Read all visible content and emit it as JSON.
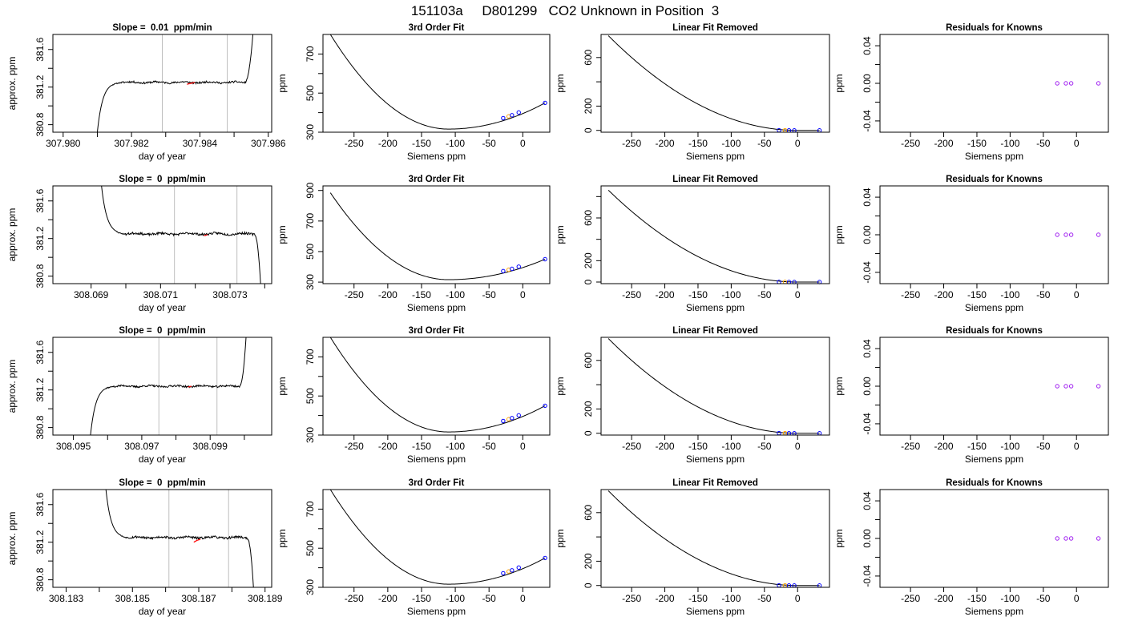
{
  "figure_title": "151103a     D801299   CO2 Unknown in Position  3",
  "colors": {
    "line": "#000000",
    "gray_line": "#bebebe",
    "red": "#ff0000",
    "blue": "#0000ff",
    "orange": "#ffa500",
    "purple": "#a020f0"
  },
  "chart_data": [
    {
      "type": "line",
      "title": "Slope =  0.01  ppm/min",
      "xlabel": "day of year",
      "ylabel": "approx. ppm",
      "xlim": [
        307.9797,
        307.9861
      ],
      "ylim": [
        380.72,
        381.76
      ],
      "xticks": [
        307.98,
        307.981,
        307.982,
        307.983,
        307.984,
        307.985,
        307.986
      ],
      "xticklabels": [
        "307.980",
        "",
        "307.982",
        "",
        "307.984",
        "",
        "307.986"
      ],
      "yticks": [
        380.8,
        381.0,
        381.2,
        381.4,
        381.6
      ],
      "yticklabels": [
        "380.8",
        "",
        "381.2",
        "",
        "381.6"
      ],
      "vlines": [
        307.9829,
        307.9848
      ],
      "trace": {
        "x0": 307.981,
        "x1": 307.98555,
        "start": 380.72,
        "plateau": 381.25,
        "end": 381.76,
        "rise_end": 307.9817,
        "fall_start": 307.9853,
        "direction": "up",
        "noise": 0.01,
        "seed": 11
      },
      "highlight": {
        "x": [
          307.98362,
          307.98374,
          307.98385
        ],
        "y": [
          381.23,
          381.24,
          381.25
        ]
      }
    },
    {
      "type": "line",
      "title": "3rd Order Fit",
      "xlabel": "Siemens ppm",
      "ylabel": "ppm",
      "xlim": [
        -296,
        40
      ],
      "ylim": [
        300,
        800
      ],
      "xticks": [
        -250,
        -200,
        -150,
        -100,
        -50,
        0
      ],
      "xticklabels": [
        "-250",
        "-200",
        "-150",
        "-100",
        "-50",
        "0"
      ],
      "yticks": [
        300,
        400,
        500,
        600,
        700
      ],
      "yticklabels": [
        "300",
        "",
        "500",
        "",
        "700"
      ],
      "curve": {
        "xmin": -285,
        "xmax": 33,
        "xv": -110,
        "yv": 316,
        "y_left": 800,
        "y_right": 450
      },
      "points": [
        {
          "x": -29,
          "y": 372,
          "color": "blue"
        },
        {
          "x": -21,
          "y": 381,
          "color": "orange"
        },
        {
          "x": -16,
          "y": 387,
          "color": "blue"
        },
        {
          "x": -6,
          "y": 401,
          "color": "blue"
        },
        {
          "x": 33,
          "y": 450,
          "color": "blue"
        }
      ]
    },
    {
      "type": "line",
      "title": "Linear Fit Removed",
      "xlabel": "Siemens ppm",
      "ylabel": "ppm",
      "xlim": [
        -296,
        48
      ],
      "ylim": [
        -15,
        790
      ],
      "xticks": [
        -250,
        -200,
        -150,
        -100,
        -50,
        0
      ],
      "xticklabels": [
        "-250",
        "-200",
        "-150",
        "-100",
        "-50",
        "0"
      ],
      "yticks": [
        0,
        200,
        400,
        600
      ],
      "yticklabels": [
        "0",
        "200",
        "",
        "600"
      ],
      "curve": {
        "xmin": -285,
        "xmax": 33,
        "xv": 0,
        "yv": 0,
        "y_left": 780,
        "y_right": 0
      },
      "points": [
        {
          "x": -28,
          "y": 1,
          "color": "blue"
        },
        {
          "x": -19,
          "y": 1,
          "color": "orange"
        },
        {
          "x": -13,
          "y": 0,
          "color": "blue"
        },
        {
          "x": -5,
          "y": 0,
          "color": "blue"
        },
        {
          "x": 33,
          "y": 0,
          "color": "blue"
        }
      ]
    },
    {
      "type": "scatter",
      "title": "Residuals for Knowns",
      "xlabel": "Siemens ppm",
      "ylabel": "ppm",
      "xlim": [
        -296,
        48
      ],
      "ylim": [
        -0.052,
        0.052
      ],
      "xticks": [
        -250,
        -200,
        -150,
        -100,
        -50,
        0
      ],
      "xticklabels": [
        "-250",
        "-200",
        "-150",
        "-100",
        "-50",
        "0"
      ],
      "yticks": [
        -0.04,
        -0.02,
        0,
        0.02,
        0.04
      ],
      "yticklabels": [
        "-0.04",
        "",
        "0.00",
        "",
        "0.04"
      ],
      "points": [
        {
          "x": -29,
          "y": 0,
          "color": "purple"
        },
        {
          "x": -16,
          "y": 0,
          "color": "purple"
        },
        {
          "x": -8,
          "y": 0,
          "color": "purple"
        },
        {
          "x": 33,
          "y": 0,
          "color": "purple"
        }
      ]
    },
    {
      "type": "line",
      "title": "Slope =  0  ppm/min",
      "xlabel": "day of year",
      "ylabel": "approx. ppm",
      "xlim": [
        308.0679,
        308.0742
      ],
      "ylim": [
        380.72,
        381.76
      ],
      "xticks": [
        308.069,
        308.07,
        308.071,
        308.072,
        308.073,
        308.074
      ],
      "xticklabels": [
        "308.069",
        "",
        "308.071",
        "",
        "308.073",
        ""
      ],
      "yticks": [
        380.8,
        381.0,
        381.2,
        381.4,
        381.6
      ],
      "yticklabels": [
        "380.8",
        "",
        "381.2",
        "",
        "381.6"
      ],
      "vlines": [
        308.0714,
        308.0732
      ],
      "trace": {
        "x0": 308.0693,
        "x1": 308.07388,
        "start": 381.76,
        "plateau": 381.25,
        "end": 380.72,
        "rise_end": 308.07,
        "fall_start": 308.0737,
        "direction": "down",
        "noise": 0.012,
        "seed": 23
      },
      "highlight": {
        "x": [
          308.07225,
          308.07235
        ],
        "y": [
          381.23,
          381.24
        ]
      }
    },
    {
      "type": "line",
      "title": "3rd Order Fit",
      "xlabel": "Siemens ppm",
      "ylabel": "ppm",
      "xlim": [
        -296,
        40
      ],
      "ylim": [
        290,
        930
      ],
      "xticks": [
        -250,
        -200,
        -150,
        -100,
        -50,
        0
      ],
      "xticklabels": [
        "-250",
        "-200",
        "-150",
        "-100",
        "-50",
        "0"
      ],
      "yticks": [
        300,
        500,
        700,
        900
      ],
      "yticklabels": [
        "300",
        "500",
        "700",
        "900"
      ],
      "curve": {
        "xmin": -285,
        "xmax": 33,
        "xv": -110,
        "yv": 316,
        "y_left": 885,
        "y_right": 450
      },
      "points": [
        {
          "x": -29,
          "y": 372,
          "color": "blue"
        },
        {
          "x": -21,
          "y": 381,
          "color": "orange"
        },
        {
          "x": -16,
          "y": 387,
          "color": "blue"
        },
        {
          "x": -6,
          "y": 401,
          "color": "blue"
        },
        {
          "x": 33,
          "y": 450,
          "color": "blue"
        }
      ]
    },
    {
      "type": "line",
      "title": "Linear Fit Removed",
      "xlabel": "Siemens ppm",
      "ylabel": "ppm",
      "xlim": [
        -296,
        48
      ],
      "ylim": [
        -15,
        900
      ],
      "xticks": [
        -250,
        -200,
        -150,
        -100,
        -50,
        0
      ],
      "xticklabels": [
        "-250",
        "-200",
        "-150",
        "-100",
        "-50",
        "0"
      ],
      "yticks": [
        0,
        200,
        400,
        600,
        800
      ],
      "yticklabels": [
        "0",
        "200",
        "",
        "600",
        ""
      ],
      "curve": {
        "xmin": -285,
        "xmax": 33,
        "xv": 0,
        "yv": 0,
        "y_left": 860,
        "y_right": 0
      },
      "points": [
        {
          "x": -28,
          "y": 1,
          "color": "blue"
        },
        {
          "x": -19,
          "y": 1,
          "color": "orange"
        },
        {
          "x": -13,
          "y": 0,
          "color": "blue"
        },
        {
          "x": -5,
          "y": 0,
          "color": "blue"
        },
        {
          "x": 33,
          "y": 0,
          "color": "blue"
        }
      ]
    },
    {
      "type": "scatter",
      "title": "Residuals for Knowns",
      "xlabel": "Siemens ppm",
      "ylabel": "ppm",
      "xlim": [
        -296,
        48
      ],
      "ylim": [
        -0.052,
        0.052
      ],
      "xticks": [
        -250,
        -200,
        -150,
        -100,
        -50,
        0
      ],
      "xticklabels": [
        "-250",
        "-200",
        "-150",
        "-100",
        "-50",
        "0"
      ],
      "yticks": [
        -0.04,
        -0.02,
        0,
        0.02,
        0.04
      ],
      "yticklabels": [
        "-0.04",
        "",
        "0.00",
        "",
        "0.04"
      ],
      "points": [
        {
          "x": -29,
          "y": 0,
          "color": "purple"
        },
        {
          "x": -16,
          "y": 0,
          "color": "purple"
        },
        {
          "x": -8,
          "y": 0,
          "color": "purple"
        },
        {
          "x": 33,
          "y": 0,
          "color": "purple"
        }
      ]
    },
    {
      "type": "line",
      "title": "Slope =  0  ppm/min",
      "xlabel": "day of year",
      "ylabel": "approx. ppm",
      "xlim": [
        308.0944,
        308.1008
      ],
      "ylim": [
        380.72,
        381.76
      ],
      "xticks": [
        308.095,
        308.096,
        308.097,
        308.098,
        308.099,
        308.1
      ],
      "xticklabels": [
        "308.095",
        "",
        "308.097",
        "",
        "308.099",
        ""
      ],
      "yticks": [
        380.8,
        381.0,
        381.2,
        381.4,
        381.6
      ],
      "yticklabels": [
        "380.8",
        "",
        "381.2",
        "",
        "381.6"
      ],
      "vlines": [
        308.0975,
        308.0992
      ],
      "trace": {
        "x0": 308.0955,
        "x1": 308.10005,
        "start": 380.72,
        "plateau": 381.24,
        "end": 381.76,
        "rise_end": 308.0962,
        "fall_start": 308.09985,
        "direction": "up",
        "noise": 0.01,
        "seed": 37
      },
      "highlight": {
        "x": [
          308.09835,
          308.09845
        ],
        "y": [
          381.23,
          381.24
        ]
      }
    },
    {
      "type": "line",
      "title": "3rd Order Fit",
      "xlabel": "Siemens ppm",
      "ylabel": "ppm",
      "xlim": [
        -296,
        40
      ],
      "ylim": [
        300,
        800
      ],
      "xticks": [
        -250,
        -200,
        -150,
        -100,
        -50,
        0
      ],
      "xticklabels": [
        "-250",
        "-200",
        "-150",
        "-100",
        "-50",
        "0"
      ],
      "yticks": [
        300,
        400,
        500,
        600,
        700
      ],
      "yticklabels": [
        "300",
        "",
        "500",
        "",
        "700"
      ],
      "curve": {
        "xmin": -285,
        "xmax": 33,
        "xv": -110,
        "yv": 316,
        "y_left": 800,
        "y_right": 450
      },
      "points": [
        {
          "x": -29,
          "y": 372,
          "color": "blue"
        },
        {
          "x": -21,
          "y": 381,
          "color": "orange"
        },
        {
          "x": -16,
          "y": 387,
          "color": "blue"
        },
        {
          "x": -6,
          "y": 401,
          "color": "blue"
        },
        {
          "x": 33,
          "y": 450,
          "color": "blue"
        }
      ]
    },
    {
      "type": "line",
      "title": "Linear Fit Removed",
      "xlabel": "Siemens ppm",
      "ylabel": "ppm",
      "xlim": [
        -296,
        48
      ],
      "ylim": [
        -15,
        790
      ],
      "xticks": [
        -250,
        -200,
        -150,
        -100,
        -50,
        0
      ],
      "xticklabels": [
        "-250",
        "-200",
        "-150",
        "-100",
        "-50",
        "0"
      ],
      "yticks": [
        0,
        200,
        400,
        600
      ],
      "yticklabels": [
        "0",
        "200",
        "",
        "600"
      ],
      "curve": {
        "xmin": -285,
        "xmax": 33,
        "xv": 0,
        "yv": 0,
        "y_left": 780,
        "y_right": 0
      },
      "points": [
        {
          "x": -28,
          "y": 1,
          "color": "blue"
        },
        {
          "x": -19,
          "y": 1,
          "color": "orange"
        },
        {
          "x": -13,
          "y": 0,
          "color": "blue"
        },
        {
          "x": -5,
          "y": 0,
          "color": "blue"
        },
        {
          "x": 33,
          "y": 0,
          "color": "blue"
        }
      ]
    },
    {
      "type": "scatter",
      "title": "Residuals for Knowns",
      "xlabel": "Siemens ppm",
      "ylabel": "ppm",
      "xlim": [
        -296,
        48
      ],
      "ylim": [
        -0.052,
        0.052
      ],
      "xticks": [
        -250,
        -200,
        -150,
        -100,
        -50,
        0
      ],
      "xticklabels": [
        "-250",
        "-200",
        "-150",
        "-100",
        "-50",
        "0"
      ],
      "yticks": [
        -0.04,
        -0.02,
        0,
        0.02,
        0.04
      ],
      "yticklabels": [
        "-0.04",
        "",
        "0.00",
        "",
        "0.04"
      ],
      "points": [
        {
          "x": -29,
          "y": 0,
          "color": "purple"
        },
        {
          "x": -16,
          "y": 0,
          "color": "purple"
        },
        {
          "x": -8,
          "y": 0,
          "color": "purple"
        },
        {
          "x": 33,
          "y": 0,
          "color": "purple"
        }
      ]
    },
    {
      "type": "line",
      "title": "Slope =  0  ppm/min",
      "xlabel": "day of year",
      "ylabel": "approx. ppm",
      "xlim": [
        308.1826,
        308.1892
      ],
      "ylim": [
        380.72,
        381.76
      ],
      "xticks": [
        308.183,
        308.184,
        308.185,
        308.186,
        308.187,
        308.188,
        308.189
      ],
      "xticklabels": [
        "308.183",
        "",
        "308.185",
        "",
        "308.187",
        "",
        "308.189"
      ],
      "yticks": [
        380.8,
        381.0,
        381.2,
        381.4,
        381.6
      ],
      "yticklabels": [
        "380.8",
        "",
        "381.2",
        "",
        "381.6"
      ],
      "vlines": [
        308.1861,
        308.1879
      ],
      "trace": {
        "x0": 308.1842,
        "x1": 308.18865,
        "start": 381.76,
        "plateau": 381.25,
        "end": 380.72,
        "rise_end": 308.1849,
        "fall_start": 308.18845,
        "direction": "down",
        "noise": 0.012,
        "seed": 53
      },
      "highlight": {
        "x": [
          308.18685,
          308.18695,
          308.18705
        ],
        "y": [
          381.2,
          381.22,
          381.23
        ]
      }
    },
    {
      "type": "line",
      "title": "3rd Order Fit",
      "xlabel": "Siemens ppm",
      "ylabel": "ppm",
      "xlim": [
        -296,
        40
      ],
      "ylim": [
        300,
        800
      ],
      "xticks": [
        -250,
        -200,
        -150,
        -100,
        -50,
        0
      ],
      "xticklabels": [
        "-250",
        "-200",
        "-150",
        "-100",
        "-50",
        "0"
      ],
      "yticks": [
        300,
        400,
        500,
        600,
        700
      ],
      "yticklabels": [
        "300",
        "",
        "500",
        "",
        "700"
      ],
      "curve": {
        "xmin": -285,
        "xmax": 33,
        "xv": -110,
        "yv": 316,
        "y_left": 800,
        "y_right": 450
      },
      "points": [
        {
          "x": -29,
          "y": 372,
          "color": "blue"
        },
        {
          "x": -21,
          "y": 381,
          "color": "orange"
        },
        {
          "x": -16,
          "y": 387,
          "color": "blue"
        },
        {
          "x": -6,
          "y": 401,
          "color": "blue"
        },
        {
          "x": 33,
          "y": 450,
          "color": "blue"
        }
      ]
    },
    {
      "type": "line",
      "title": "Linear Fit Removed",
      "xlabel": "Siemens ppm",
      "ylabel": "ppm",
      "xlim": [
        -296,
        48
      ],
      "ylim": [
        -15,
        790
      ],
      "xticks": [
        -250,
        -200,
        -150,
        -100,
        -50,
        0
      ],
      "xticklabels": [
        "-250",
        "-200",
        "-150",
        "-100",
        "-50",
        "0"
      ],
      "yticks": [
        0,
        200,
        400,
        600
      ],
      "yticklabels": [
        "0",
        "200",
        "",
        "600"
      ],
      "curve": {
        "xmin": -285,
        "xmax": 33,
        "xv": 0,
        "yv": 0,
        "y_left": 780,
        "y_right": 0
      },
      "points": [
        {
          "x": -28,
          "y": 1,
          "color": "blue"
        },
        {
          "x": -19,
          "y": 1,
          "color": "orange"
        },
        {
          "x": -13,
          "y": 0,
          "color": "blue"
        },
        {
          "x": -5,
          "y": 0,
          "color": "blue"
        },
        {
          "x": 33,
          "y": 0,
          "color": "blue"
        }
      ]
    },
    {
      "type": "scatter",
      "title": "Residuals for Knowns",
      "xlabel": "Siemens ppm",
      "ylabel": "ppm",
      "xlim": [
        -296,
        48
      ],
      "ylim": [
        -0.052,
        0.052
      ],
      "xticks": [
        -250,
        -200,
        -150,
        -100,
        -50,
        0
      ],
      "xticklabels": [
        "-250",
        "-200",
        "-150",
        "-100",
        "-50",
        "0"
      ],
      "yticks": [
        -0.04,
        -0.02,
        0,
        0.02,
        0.04
      ],
      "yticklabels": [
        "-0.04",
        "",
        "0.00",
        "",
        "0.04"
      ],
      "points": [
        {
          "x": -29,
          "y": 0,
          "color": "purple"
        },
        {
          "x": -16,
          "y": 0,
          "color": "purple"
        },
        {
          "x": -8,
          "y": 0,
          "color": "purple"
        },
        {
          "x": 33,
          "y": 0,
          "color": "purple"
        }
      ]
    }
  ]
}
